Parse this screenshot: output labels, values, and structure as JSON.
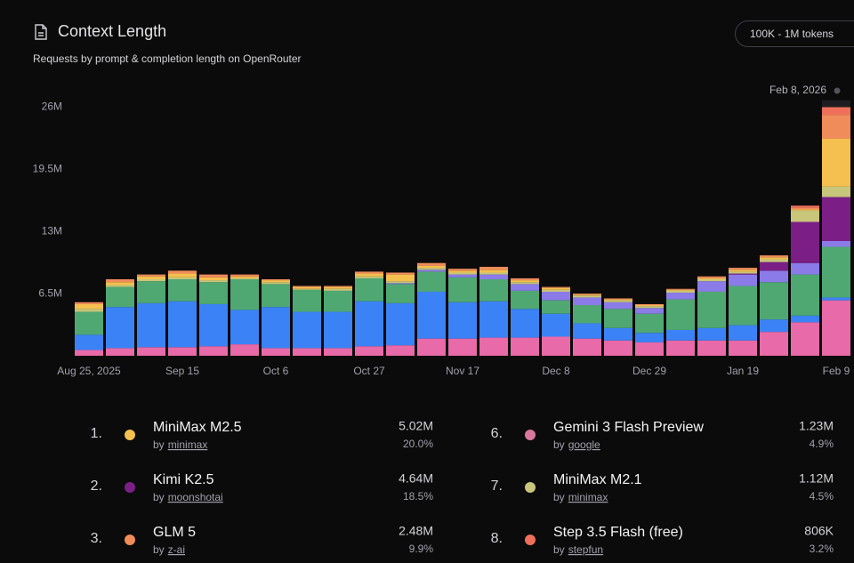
{
  "header": {
    "title": "Context Length",
    "subtitle": "Requests by prompt & completion length on OpenRouter",
    "filter": "100K - 1M tokens"
  },
  "chart_data": {
    "type": "stacked_bar",
    "highlight_label": "Feb 8, 2026",
    "categories": [
      "Aug 25, 2025",
      null,
      null,
      "Sep 15",
      null,
      null,
      "Oct 6",
      null,
      null,
      "Oct 27",
      null,
      null,
      "Nov 17",
      null,
      null,
      "Dec 8",
      null,
      null,
      "Dec 29",
      null,
      null,
      "Jan 19",
      null,
      null,
      "Feb 9"
    ],
    "ylim": [
      0,
      27000000
    ],
    "yticks": [
      {
        "value": 6500000,
        "label": "6.5M"
      },
      {
        "value": 13000000,
        "label": "13M"
      },
      {
        "value": 19500000,
        "label": "19.5M"
      },
      {
        "value": 26000000,
        "label": "26M"
      }
    ],
    "grid": false,
    "series": [
      {
        "color": "#e86aa8",
        "values": [
          600000,
          800000,
          900000,
          900000,
          1000000,
          1200000,
          800000,
          800000,
          800000,
          1000000,
          1100000,
          1800000,
          1800000,
          1900000,
          1900000,
          2000000,
          1800000,
          1600000,
          1400000,
          1600000,
          1600000,
          1600000,
          2500000,
          3500000,
          5800000
        ]
      },
      {
        "color": "#3b82f6",
        "values": [
          1600000,
          4300000,
          4600000,
          4800000,
          4400000,
          3600000,
          4300000,
          3800000,
          3800000,
          4700000,
          4400000,
          4900000,
          3800000,
          3800000,
          3000000,
          2400000,
          1600000,
          1300000,
          1000000,
          1100000,
          1300000,
          1600000,
          1300000,
          700000,
          300000
        ]
      },
      {
        "color": "#4fa872",
        "values": [
          2400000,
          2100000,
          2300000,
          2300000,
          2300000,
          3200000,
          2400000,
          2300000,
          2200000,
          2400000,
          2000000,
          2100000,
          2600000,
          2300000,
          1900000,
          1400000,
          1900000,
          2000000,
          2000000,
          3200000,
          3800000,
          4100000,
          3900000,
          4300000,
          5300000
        ]
      },
      {
        "color": "#8b7be8",
        "values": [
          0,
          0,
          0,
          0,
          0,
          0,
          0,
          0,
          0,
          0,
          100000,
          200000,
          300000,
          500000,
          700000,
          900000,
          800000,
          700000,
          600000,
          700000,
          1100000,
          1200000,
          1200000,
          1200000,
          600000
        ]
      },
      {
        "color": "#7b1f86",
        "values": [
          0,
          0,
          0,
          0,
          0,
          0,
          0,
          0,
          0,
          0,
          0,
          0,
          0,
          0,
          0,
          0,
          0,
          0,
          0,
          0,
          0,
          100000,
          900000,
          4300000,
          4600000
        ]
      },
      {
        "color": "#c8c67a",
        "values": [
          300000,
          200000,
          200000,
          200000,
          200000,
          100000,
          200000,
          100000,
          200000,
          200000,
          200000,
          200000,
          200000,
          200000,
          200000,
          200000,
          200000,
          200000,
          200000,
          200000,
          200000,
          200000,
          300000,
          1200000,
          1100000
        ]
      },
      {
        "color": "#f5c04f",
        "values": [
          500000,
          300000,
          300000,
          400000,
          300000,
          200000,
          200000,
          200000,
          200000,
          300000,
          700000,
          200000,
          200000,
          300000,
          200000,
          200000,
          100000,
          100000,
          100000,
          100000,
          100000,
          200000,
          200000,
          100000,
          5000000
        ]
      },
      {
        "color": "#f08c5a",
        "values": [
          200000,
          300000,
          200000,
          300000,
          300000,
          200000,
          100000,
          100000,
          100000,
          200000,
          200000,
          300000,
          200000,
          300000,
          200000,
          100000,
          100000,
          100000,
          100000,
          100000,
          200000,
          200000,
          200000,
          200000,
          2500000
        ]
      },
      {
        "color": "#ef6f5a",
        "values": [
          0,
          0,
          0,
          0,
          0,
          0,
          0,
          0,
          0,
          0,
          0,
          0,
          0,
          0,
          0,
          0,
          0,
          0,
          0,
          0,
          0,
          0,
          0,
          200000,
          800000
        ]
      }
    ]
  },
  "leaderboard": {
    "by": "by",
    "entries": [
      {
        "rank": "1.",
        "name": "MiniMax M2.5",
        "provider": "minimax",
        "value": "5.02M",
        "share": "20.0%",
        "color": "#f5c04f"
      },
      {
        "rank": "2.",
        "name": "Kimi K2.5",
        "provider": "moonshotai",
        "value": "4.64M",
        "share": "18.5%",
        "color": "#7b1f86"
      },
      {
        "rank": "3.",
        "name": "GLM 5",
        "provider": "z-ai",
        "value": "2.48M",
        "share": "9.9%",
        "color": "#f08c5a"
      },
      {
        "rank": "6.",
        "name": "Gemini 3 Flash Preview",
        "provider": "google",
        "value": "1.23M",
        "share": "4.9%",
        "color": "#d9789a"
      },
      {
        "rank": "7.",
        "name": "MiniMax M2.1",
        "provider": "minimax",
        "value": "1.12M",
        "share": "4.5%",
        "color": "#c8c67a"
      },
      {
        "rank": "8.",
        "name": "Step 3.5 Flash (free)",
        "provider": "stepfun",
        "value": "806K",
        "share": "3.2%",
        "color": "#ef6f5a"
      }
    ]
  }
}
